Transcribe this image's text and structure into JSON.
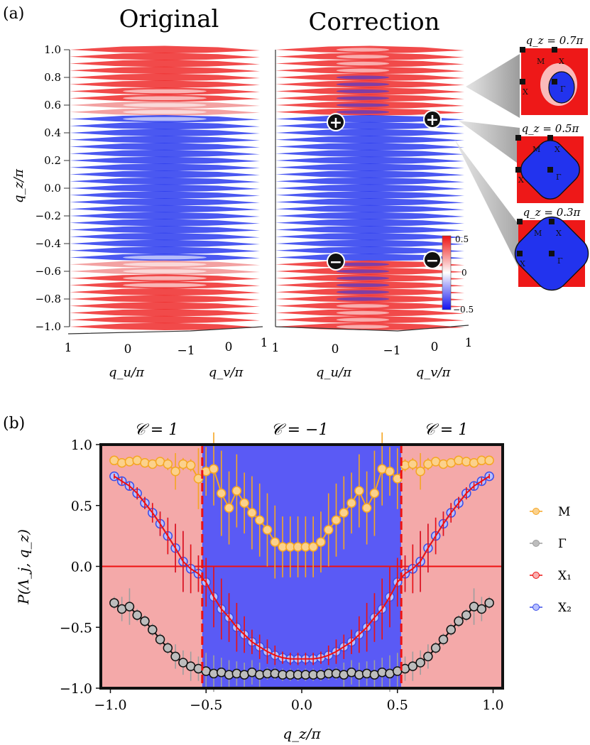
{
  "panel_a": {
    "label": "(a)",
    "titles": [
      "Original",
      "Correction"
    ],
    "z_axis_label": "q_z/π",
    "z_ticks": [
      "1.0",
      "0.8",
      "0.6",
      "0.4",
      "0.2",
      "0.0",
      "−0.2",
      "−0.4",
      "−0.6",
      "−0.8",
      "−1.0"
    ],
    "u_axis_label": "q_u/π",
    "v_axis_label": "q_v/π",
    "u_ticks": [
      "1",
      "0",
      "−1"
    ],
    "v_ticks": [
      "0",
      "1"
    ],
    "charge_markers": [
      {
        "sign": "+"
      },
      {
        "sign": "+"
      },
      {
        "sign": "−"
      },
      {
        "sign": "−"
      }
    ],
    "colorbar": {
      "max": "0.5",
      "mid": "0",
      "min": "−0.5",
      "colors": {
        "high": "#ee1111",
        "mid": "#ffffff",
        "low": "#1111ee"
      }
    },
    "insets": [
      {
        "title": "q_z = 0.7π",
        "labels": [
          "M",
          "X",
          "X",
          "Γ"
        ]
      },
      {
        "title": "q_z = 0.5π",
        "labels": [
          "M",
          "X",
          "X",
          "Γ"
        ]
      },
      {
        "title": "q_z = 0.3π",
        "labels": [
          "M",
          "X",
          "X",
          "Γ"
        ]
      }
    ]
  },
  "panel_b": {
    "label": "(b)",
    "chern_labels": [
      "𝒞 = 1",
      "𝒞 = −1",
      "𝒞 = 1"
    ],
    "colors": {
      "trivial": "#f4a9a9",
      "nontrivial": "#5a5af5",
      "zero_line": "#ee1111",
      "boundary": "#ee1111"
    }
  },
  "chart_data": {
    "type": "line",
    "xlabel": "q_z/π",
    "ylabel": "P(Λ_j, q_z)",
    "xlim": [
      -1.05,
      1.05
    ],
    "ylim": [
      -1.0,
      1.0
    ],
    "xticks": [
      "−1.0",
      "−0.5",
      "0.0",
      "0.5",
      "1.0"
    ],
    "yticks": [
      "−1.0",
      "−0.5",
      "0.0",
      "0.5",
      "1.0"
    ],
    "phase_boundaries": [
      -0.52,
      0.52
    ],
    "legend_position": "right",
    "x": [
      -0.98,
      -0.94,
      -0.9,
      -0.86,
      -0.82,
      -0.78,
      -0.74,
      -0.7,
      -0.66,
      -0.62,
      -0.58,
      -0.54,
      -0.5,
      -0.46,
      -0.42,
      -0.38,
      -0.34,
      -0.3,
      -0.26,
      -0.22,
      -0.18,
      -0.14,
      -0.1,
      -0.06,
      -0.02,
      0.02,
      0.06,
      0.1,
      0.14,
      0.18,
      0.22,
      0.26,
      0.3,
      0.34,
      0.38,
      0.42,
      0.46,
      0.5,
      0.54,
      0.58,
      0.62,
      0.66,
      0.7,
      0.74,
      0.78,
      0.82,
      0.86,
      0.9,
      0.94,
      0.98
    ],
    "series": [
      {
        "name": "M",
        "color": "#f5a623",
        "values": [
          0.87,
          0.85,
          0.86,
          0.87,
          0.85,
          0.84,
          0.86,
          0.84,
          0.78,
          0.84,
          0.83,
          0.72,
          0.78,
          0.8,
          0.6,
          0.48,
          0.62,
          0.52,
          0.44,
          0.38,
          0.3,
          0.2,
          0.16,
          0.16,
          0.16,
          0.16,
          0.16,
          0.2,
          0.3,
          0.38,
          0.44,
          0.52,
          0.62,
          0.48,
          0.6,
          0.8,
          0.78,
          0.72,
          0.83,
          0.84,
          0.78,
          0.84,
          0.86,
          0.84,
          0.85,
          0.87,
          0.86,
          0.85,
          0.87,
          0.87
        ],
        "err": [
          0.02,
          0.02,
          0.02,
          0.02,
          0.02,
          0.02,
          0.03,
          0.05,
          0.15,
          0.05,
          0.05,
          0.25,
          0.2,
          0.3,
          0.35,
          0.3,
          0.3,
          0.25,
          0.3,
          0.3,
          0.3,
          0.3,
          0.25,
          0.25,
          0.25,
          0.25,
          0.25,
          0.25,
          0.3,
          0.3,
          0.3,
          0.25,
          0.3,
          0.3,
          0.35,
          0.3,
          0.2,
          0.25,
          0.05,
          0.05,
          0.15,
          0.05,
          0.03,
          0.02,
          0.02,
          0.02,
          0.02,
          0.02,
          0.02,
          0.02
        ]
      },
      {
        "name": "Γ",
        "color": "#9e9e9e",
        "values": [
          -0.3,
          -0.35,
          -0.33,
          -0.4,
          -0.45,
          -0.52,
          -0.6,
          -0.67,
          -0.74,
          -0.79,
          -0.82,
          -0.84,
          -0.86,
          -0.88,
          -0.87,
          -0.89,
          -0.88,
          -0.89,
          -0.87,
          -0.89,
          -0.88,
          -0.88,
          -0.89,
          -0.89,
          -0.89,
          -0.89,
          -0.89,
          -0.89,
          -0.88,
          -0.88,
          -0.89,
          -0.87,
          -0.89,
          -0.88,
          -0.89,
          -0.87,
          -0.88,
          -0.86,
          -0.84,
          -0.82,
          -0.79,
          -0.74,
          -0.67,
          -0.6,
          -0.52,
          -0.45,
          -0.4,
          -0.33,
          -0.35,
          -0.3
        ],
        "err": [
          0.05,
          0.1,
          0.15,
          0.05,
          0.05,
          0.05,
          0.05,
          0.05,
          0.1,
          0.1,
          0.12,
          0.1,
          0.15,
          0.15,
          0.12,
          0.12,
          0.1,
          0.1,
          0.1,
          0.1,
          0.05,
          0.05,
          0.05,
          0.05,
          0.05,
          0.05,
          0.05,
          0.05,
          0.05,
          0.05,
          0.1,
          0.1,
          0.1,
          0.1,
          0.12,
          0.12,
          0.15,
          0.15,
          0.1,
          0.12,
          0.1,
          0.1,
          0.05,
          0.05,
          0.05,
          0.05,
          0.05,
          0.15,
          0.1,
          0.05
        ]
      },
      {
        "name": "X_1",
        "color": "#ee1111",
        "values": [
          0.74,
          0.7,
          0.66,
          0.6,
          0.52,
          0.44,
          0.35,
          0.25,
          0.15,
          0.04,
          -0.02,
          -0.06,
          -0.13,
          -0.25,
          -0.35,
          -0.42,
          -0.5,
          -0.56,
          -0.62,
          -0.66,
          -0.7,
          -0.73,
          -0.75,
          -0.76,
          -0.76,
          -0.76,
          -0.76,
          -0.75,
          -0.73,
          -0.7,
          -0.66,
          -0.62,
          -0.56,
          -0.5,
          -0.42,
          -0.35,
          -0.25,
          -0.13,
          -0.06,
          -0.02,
          0.04,
          0.15,
          0.25,
          0.35,
          0.44,
          0.52,
          0.6,
          0.66,
          0.7,
          0.74
        ],
        "err": [
          0.02,
          0.03,
          0.03,
          0.05,
          0.05,
          0.08,
          0.1,
          0.15,
          0.2,
          0.25,
          0.2,
          0.15,
          0.2,
          0.25,
          0.25,
          0.2,
          0.2,
          0.15,
          0.1,
          0.1,
          0.1,
          0.08,
          0.05,
          0.05,
          0.05,
          0.05,
          0.05,
          0.05,
          0.08,
          0.1,
          0.1,
          0.1,
          0.15,
          0.2,
          0.2,
          0.25,
          0.25,
          0.2,
          0.15,
          0.2,
          0.25,
          0.2,
          0.15,
          0.1,
          0.08,
          0.05,
          0.05,
          0.03,
          0.03,
          0.02
        ]
      },
      {
        "name": "X_2",
        "color": "#3a4ee8",
        "values": [
          0.74,
          0.7,
          0.66,
          0.6,
          0.52,
          0.44,
          0.35,
          0.25,
          0.15,
          0.04,
          -0.02,
          -0.06,
          -0.13,
          -0.25,
          -0.35,
          -0.42,
          -0.5,
          -0.56,
          -0.62,
          -0.66,
          -0.7,
          -0.73,
          -0.75,
          -0.76,
          -0.76,
          -0.76,
          -0.76,
          -0.75,
          -0.73,
          -0.7,
          -0.66,
          -0.62,
          -0.56,
          -0.5,
          -0.42,
          -0.35,
          -0.25,
          -0.13,
          -0.06,
          -0.02,
          0.04,
          0.15,
          0.25,
          0.35,
          0.44,
          0.52,
          0.6,
          0.66,
          0.7,
          0.74
        ],
        "err": [
          0.02,
          0.03,
          0.03,
          0.05,
          0.05,
          0.08,
          0.1,
          0.15,
          0.2,
          0.25,
          0.2,
          0.15,
          0.2,
          0.25,
          0.25,
          0.2,
          0.2,
          0.15,
          0.1,
          0.1,
          0.1,
          0.08,
          0.05,
          0.05,
          0.05,
          0.05,
          0.05,
          0.05,
          0.08,
          0.1,
          0.1,
          0.1,
          0.15,
          0.2,
          0.2,
          0.25,
          0.25,
          0.2,
          0.15,
          0.2,
          0.25,
          0.2,
          0.15,
          0.1,
          0.08,
          0.05,
          0.05,
          0.03,
          0.03,
          0.02
        ]
      }
    ]
  }
}
